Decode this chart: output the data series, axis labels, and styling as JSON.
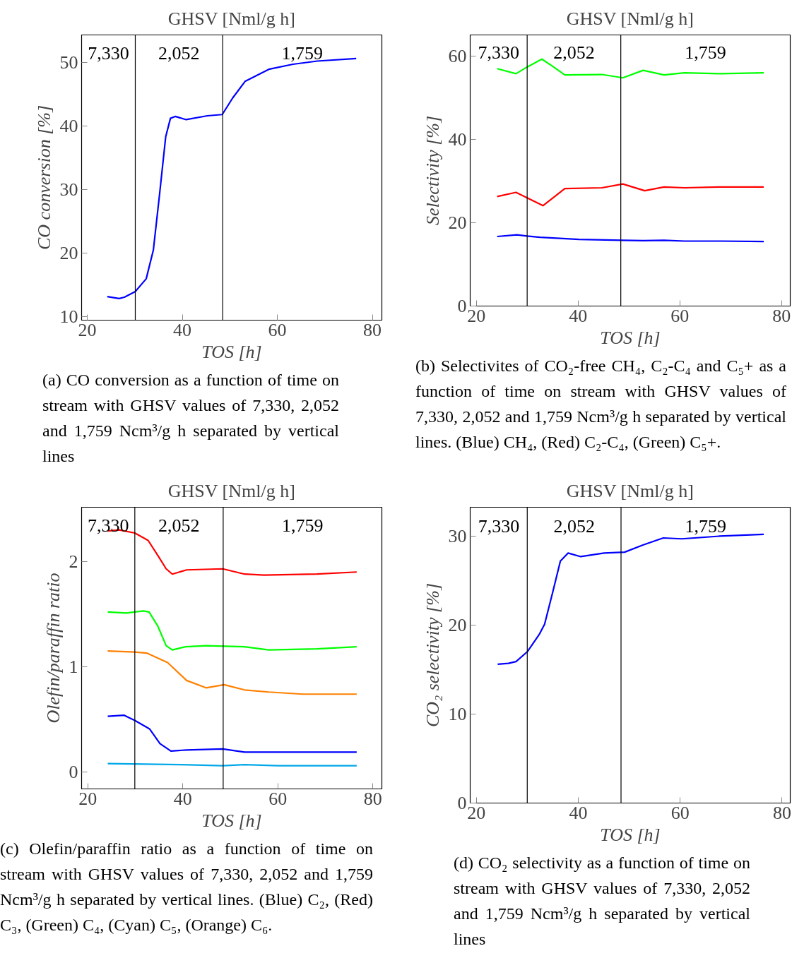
{
  "chart_data": [
    {
      "type": "line",
      "title": "GHSV [Nml/g h]",
      "xlabel": "TOS [h]",
      "ylabel": "CO conversion [%]",
      "xlim": [
        18.8,
        82.0
      ],
      "ylim": [
        9.5,
        54.3
      ],
      "xticks": [
        20,
        40,
        60,
        80
      ],
      "yticks": [
        10,
        20,
        30,
        40,
        50
      ],
      "grid": false,
      "series": [
        {
          "color": "#0000ff",
          "x": [
            24.2,
            26.7,
            27.8,
            30.1,
            32.4,
            33.9,
            35.2,
            36.5,
            37.5,
            38.5,
            40.8,
            45.3,
            48.4,
            50.6,
            53.2,
            58.2,
            63.3,
            68.4,
            76.6
          ],
          "values": [
            13.2,
            12.9,
            13.1,
            14.0,
            16.0,
            20.5,
            29.2,
            38.3,
            41.2,
            41.5,
            41.0,
            41.6,
            41.8,
            44.4,
            47.0,
            48.9,
            49.7,
            50.2,
            50.6
          ]
        }
      ],
      "ref_lines": [
        {
          "axis": "x",
          "value": 30.1,
          "color": "#000000"
        },
        {
          "axis": "x",
          "value": 48.5,
          "color": "#000000"
        }
      ],
      "annotations": [
        "7,330",
        "2,052",
        "1,759",
        "(a) CO conversion as a function of time on stream with GHSV values of 7,330, 2,052 and 1,759 Ncm³/g h separated by vertical lines"
      ]
    },
    {
      "type": "line",
      "title": "GHSV [Nml/g h]",
      "xlabel": "TOS [h]",
      "ylabel": "Selectivity [%]",
      "xlim": [
        18.8,
        81.7
      ],
      "ylim": [
        0,
        65.1
      ],
      "xticks": [
        20,
        40,
        60,
        80
      ],
      "yticks": [
        0,
        20,
        40,
        60
      ],
      "grid": false,
      "series": [
        {
          "color": "#00ff00",
          "x": [
            24.1,
            27.8,
            30.0,
            32.9,
            35.1,
            37.4,
            44.7,
            48.8,
            52.8,
            56.9,
            60.9,
            68.0,
            76.5
          ],
          "values": [
            57.0,
            55.8,
            57.4,
            59.3,
            57.5,
            55.5,
            55.6,
            54.8,
            56.6,
            55.5,
            56.0,
            55.8,
            56.0
          ]
        },
        {
          "color": "#ff0000",
          "x": [
            24.1,
            27.8,
            30.0,
            33.1,
            35.1,
            37.4,
            44.7,
            48.8,
            53.1,
            56.9,
            60.9,
            68.0,
            76.5
          ],
          "values": [
            26.3,
            27.3,
            26.0,
            24.1,
            26.0,
            28.2,
            28.4,
            29.3,
            27.7,
            28.6,
            28.4,
            28.6,
            28.6
          ]
        },
        {
          "color": "#0000ff",
          "x": [
            24.1,
            28.0,
            30.0,
            32.6,
            40.2,
            48.8,
            52.8,
            56.9,
            60.9,
            68.0,
            76.5
          ],
          "values": [
            16.7,
            17.1,
            16.8,
            16.5,
            16.0,
            15.8,
            15.7,
            15.8,
            15.6,
            15.6,
            15.5
          ]
        }
      ],
      "ref_lines": [
        {
          "axis": "x",
          "value": 30.0,
          "color": "#000000"
        },
        {
          "axis": "x",
          "value": 48.4,
          "color": "#000000"
        }
      ],
      "annotations": [
        "7,330",
        "2,052",
        "1,759",
        "(b) Selectivites of CO₂-free CH₄, C₂-C₄ and C₅+ as a function of time on stream with GHSV values of 7,330, 2,052 and 1,759 Ncm³/g h separated by vertical lines. (Blue) CH₄, (Red) C₂-C₄, (Green) C₅+."
      ]
    },
    {
      "type": "line",
      "title": "GHSV [Nml/g h]",
      "xlabel": "TOS [h]",
      "ylabel": "Olefin/paraffin ratio",
      "xlim": [
        18.7,
        81.9
      ],
      "ylim": [
        -0.16,
        2.515
      ],
      "xticks": [
        20,
        40,
        60,
        80
      ],
      "yticks": [
        0,
        1,
        2
      ],
      "grid": false,
      "series": [
        {
          "color": "#ff0000",
          "x": [
            24.2,
            26.6,
            29.9,
            32.7,
            34.7,
            36.5,
            37.8,
            40.8,
            48.4,
            53.0,
            57.1,
            68.2,
            76.6
          ],
          "values": [
            2.29,
            2.3,
            2.27,
            2.2,
            2.06,
            1.93,
            1.88,
            1.92,
            1.93,
            1.88,
            1.87,
            1.88,
            1.9
          ]
        },
        {
          "color": "#00ff00",
          "x": [
            24.2,
            28.1,
            31.7,
            32.9,
            34.7,
            36.5,
            37.8,
            40.6,
            44.9,
            53.0,
            58.1,
            68.2,
            76.6
          ],
          "values": [
            1.52,
            1.51,
            1.53,
            1.52,
            1.39,
            1.2,
            1.16,
            1.19,
            1.2,
            1.19,
            1.16,
            1.17,
            1.19
          ]
        },
        {
          "color": "#ff8000",
          "x": [
            24.2,
            29.9,
            32.4,
            36.8,
            40.8,
            44.9,
            48.7,
            53.0,
            58.1,
            65.2,
            76.6
          ],
          "values": [
            1.15,
            1.14,
            1.13,
            1.04,
            0.87,
            0.8,
            0.83,
            0.78,
            0.76,
            0.74,
            0.74
          ]
        },
        {
          "color": "#0000ff",
          "x": [
            24.2,
            27.6,
            29.9,
            33.0,
            35.2,
            37.5,
            40.8,
            48.4,
            53.0,
            58.1,
            76.6
          ],
          "values": [
            0.53,
            0.54,
            0.49,
            0.41,
            0.27,
            0.2,
            0.21,
            0.22,
            0.19,
            0.19,
            0.19
          ]
        },
        {
          "color": "#00a8e8",
          "x": [
            24.2,
            39.8,
            48.4,
            53.0,
            60.1,
            76.6
          ],
          "values": [
            0.08,
            0.07,
            0.06,
            0.07,
            0.06,
            0.06
          ]
        }
      ],
      "ref_lines": [
        {
          "axis": "x",
          "value": 29.9,
          "color": "#000000"
        },
        {
          "axis": "x",
          "value": 48.5,
          "color": "#000000"
        }
      ],
      "annotations": [
        "7,330",
        "2,052",
        "1,759",
        "(c) Olefin/paraffin ratio as a function of time on stream with GHSV values of 7,330, 2,052 and 1,759 Ncm³/g h separated by vertical lines. (Blue) C₂, (Red) C₃, (Green) C₄, (Cyan) C₅, (Orange) C₆."
      ]
    },
    {
      "type": "line",
      "title": "GHSV [Nml/g h]",
      "xlabel": "TOS [h]",
      "ylabel": "CO₂ selectivity [%]",
      "xlim": [
        18.8,
        81.6
      ],
      "ylim": [
        0,
        33.25
      ],
      "xticks": [
        20,
        40,
        60,
        80
      ],
      "yticks": [
        0,
        10,
        20,
        30
      ],
      "grid": false,
      "series": [
        {
          "color": "#0000ff",
          "x": [
            24.2,
            26.3,
            27.8,
            30.0,
            32.4,
            33.4,
            35.0,
            36.5,
            38.0,
            40.5,
            45.1,
            49.1,
            52.7,
            56.7,
            60.3,
            67.8,
            76.4
          ],
          "values": [
            15.6,
            15.7,
            15.9,
            17.0,
            19.0,
            20.1,
            23.7,
            27.2,
            28.1,
            27.7,
            28.1,
            28.2,
            29.0,
            29.8,
            29.7,
            30.0,
            30.2
          ]
        }
      ],
      "ref_lines": [
        {
          "axis": "x",
          "value": 30.0,
          "color": "#000000"
        },
        {
          "axis": "x",
          "value": 48.4,
          "color": "#000000"
        }
      ],
      "annotations": [
        "7,330",
        "2,052",
        "1,759",
        "(d) CO₂ selectivity as a function of time on stream with GHSV values of 7,330, 2,052 and 1,759 Ncm³/g h separated by vertical lines"
      ]
    }
  ]
}
